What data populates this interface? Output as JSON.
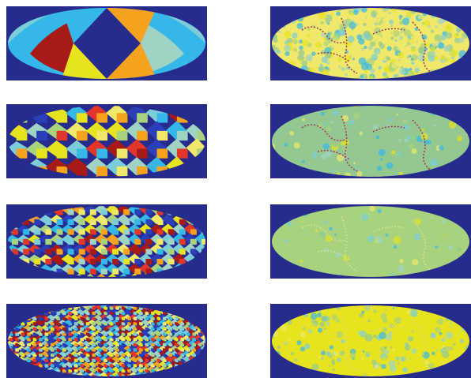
{
  "colors": {
    "background": "#262b8c",
    "ocean_green": "#93c990",
    "pale_green": "#a9d27e",
    "yellow": "#e7e31e",
    "light_yellow": "#f0e86a",
    "sky": "#35b8e8",
    "light_blue": "#7ccdd9",
    "orange": "#f6a21e",
    "dark_red": "#a81a16",
    "red": "#e3362a",
    "blue": "#2a3fb8",
    "teal": "#9fd4c4"
  },
  "panels": [
    {
      "id": "left-1",
      "kind": "tiles",
      "level": 1
    },
    {
      "id": "left-2",
      "kind": "tiles",
      "level": 2
    },
    {
      "id": "left-3",
      "kind": "tiles",
      "level": 3
    },
    {
      "id": "left-4",
      "kind": "tiles",
      "level": 4
    },
    {
      "id": "right-1",
      "kind": "field",
      "level": 1
    },
    {
      "id": "right-2",
      "kind": "field",
      "level": 2
    },
    {
      "id": "right-3",
      "kind": "field",
      "level": 3
    },
    {
      "id": "right-4",
      "kind": "field",
      "level": 4
    }
  ]
}
